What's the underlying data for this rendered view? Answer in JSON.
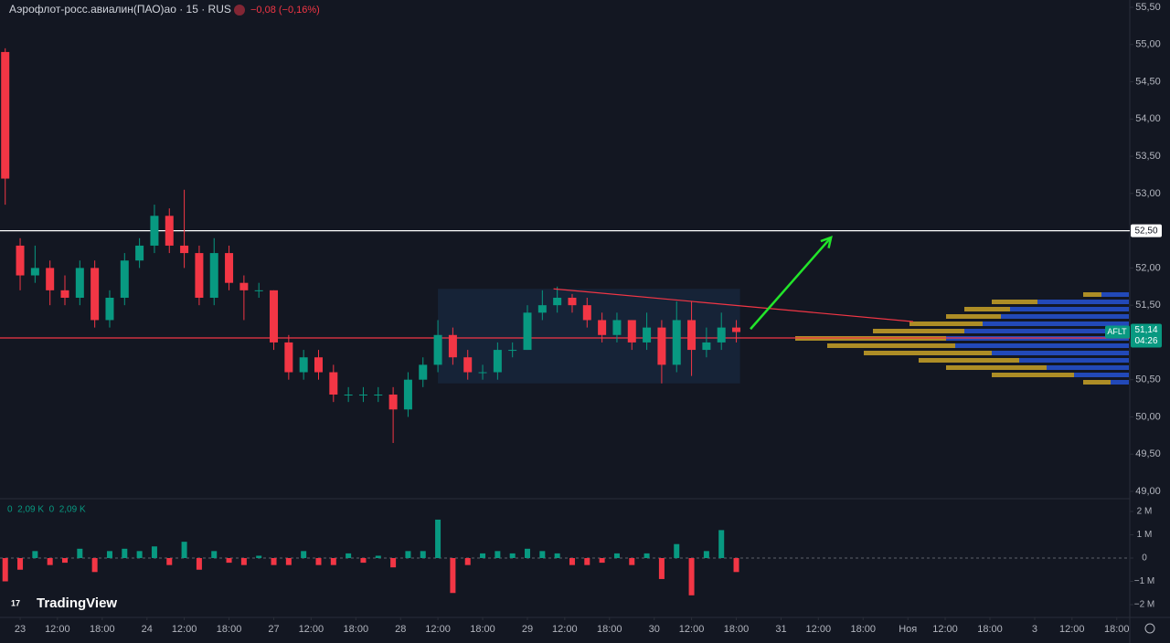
{
  "chart_data": {
    "type": "candlestick",
    "title": "Аэрофлот-росс.авиалин(ПАО)ао · 15 · RUS",
    "change": "−0,08 (−0,16%)",
    "volume_legend": "0  2,09 K  0  2,09 K",
    "logo": "TradingView",
    "up_color": "#089981",
    "down_color": "#f23645",
    "candles": {
      "x": [
        -2,
        0,
        2,
        4,
        6,
        8,
        10,
        12,
        14,
        16,
        18,
        20,
        22,
        24,
        26,
        28,
        30,
        32,
        34,
        36,
        38,
        40,
        42,
        44,
        46,
        48,
        50,
        52,
        54,
        56,
        58,
        60,
        62,
        64,
        66,
        68,
        70,
        72,
        74,
        76,
        78,
        80,
        82,
        84,
        86,
        88,
        90,
        92,
        94,
        96
      ],
      "open": [
        54.9,
        52.3,
        51.9,
        52.0,
        51.7,
        51.6,
        52.0,
        51.3,
        51.6,
        52.1,
        52.3,
        52.7,
        52.3,
        52.2,
        51.6,
        52.2,
        51.8,
        51.7,
        51.7,
        51.0,
        50.6,
        50.8,
        50.6,
        50.3,
        50.3,
        50.3,
        50.3,
        50.1,
        50.5,
        50.7,
        51.1,
        50.8,
        50.6,
        50.6,
        50.9,
        50.9,
        51.4,
        51.5,
        51.6,
        51.5,
        51.3,
        51.1,
        51.3,
        51.0,
        51.2,
        50.7,
        51.3,
        50.9,
        51.0,
        51.2
      ],
      "high": [
        54.95,
        52.4,
        52.3,
        52.1,
        51.9,
        52.1,
        52.1,
        51.7,
        52.2,
        52.4,
        52.85,
        52.8,
        53.05,
        52.3,
        52.4,
        52.3,
        51.9,
        51.8,
        51.7,
        51.1,
        50.9,
        50.9,
        50.7,
        50.4,
        50.4,
        50.4,
        50.4,
        50.6,
        50.8,
        51.3,
        51.2,
        50.9,
        50.7,
        51.0,
        51.0,
        51.5,
        51.7,
        51.75,
        51.65,
        51.6,
        51.4,
        51.4,
        51.3,
        51.4,
        51.3,
        51.55,
        51.55,
        51.2,
        51.4,
        51.3
      ],
      "low": [
        52.85,
        51.7,
        51.8,
        51.5,
        51.5,
        51.5,
        51.2,
        51.2,
        51.5,
        52.0,
        52.2,
        52.2,
        52.0,
        51.5,
        51.5,
        51.7,
        51.3,
        51.6,
        50.9,
        50.5,
        50.5,
        50.5,
        50.2,
        50.2,
        50.2,
        50.2,
        49.65,
        50.0,
        50.4,
        50.6,
        50.7,
        50.5,
        50.5,
        50.5,
        50.8,
        50.9,
        51.3,
        51.4,
        51.4,
        51.2,
        51.0,
        51.0,
        50.9,
        50.9,
        50.45,
        50.6,
        50.55,
        50.8,
        50.9,
        51.0
      ],
      "close": [
        53.2,
        51.9,
        52.0,
        51.7,
        51.6,
        52.0,
        51.3,
        51.6,
        52.1,
        52.3,
        52.7,
        52.3,
        52.2,
        51.6,
        52.2,
        51.8,
        51.7,
        51.7,
        51.0,
        50.6,
        50.8,
        50.6,
        50.3,
        50.3,
        50.3,
        50.3,
        50.1,
        50.5,
        50.7,
        51.1,
        50.8,
        50.6,
        50.6,
        50.9,
        50.9,
        51.4,
        51.5,
        51.6,
        51.5,
        51.3,
        51.1,
        51.3,
        51.0,
        51.2,
        50.7,
        51.3,
        50.9,
        51.0,
        51.2,
        51.14
      ]
    },
    "volume": [
      -1.0,
      -0.5,
      0.3,
      -0.3,
      -0.2,
      0.4,
      -0.6,
      0.3,
      0.4,
      0.3,
      0.5,
      -0.3,
      0.7,
      -0.5,
      0.3,
      -0.2,
      -0.3,
      0.1,
      -0.3,
      -0.3,
      0.3,
      -0.3,
      -0.3,
      0.2,
      -0.2,
      0.1,
      -0.4,
      0.3,
      0.3,
      1.65,
      -1.5,
      -0.3,
      0.2,
      0.3,
      0.2,
      0.4,
      0.3,
      0.2,
      -0.3,
      -0.3,
      -0.2,
      0.2,
      -0.3,
      0.2,
      -0.9,
      0.6,
      -1.6,
      0.3,
      1.2,
      -0.6
    ],
    "xlim": [
      -2.7,
      148.5
    ],
    "xticks": [
      {
        "value": 0,
        "label": "23"
      },
      {
        "value": 5,
        "label": "12:00"
      },
      {
        "value": 11,
        "label": "18:00"
      },
      {
        "value": 17,
        "label": "24"
      },
      {
        "value": 22,
        "label": "12:00"
      },
      {
        "value": 28,
        "label": "18:00"
      },
      {
        "value": 34,
        "label": "27"
      },
      {
        "value": 39,
        "label": "12:00"
      },
      {
        "value": 45,
        "label": "18:00"
      },
      {
        "value": 51,
        "label": "28"
      },
      {
        "value": 56,
        "label": "12:00"
      },
      {
        "value": 62,
        "label": "18:00"
      },
      {
        "value": 68,
        "label": "29"
      },
      {
        "value": 73,
        "label": "12:00"
      },
      {
        "value": 79,
        "label": "18:00"
      },
      {
        "value": 85,
        "label": "30"
      },
      {
        "value": 90,
        "label": "12:00"
      },
      {
        "value": 96,
        "label": "18:00"
      },
      {
        "value": 102,
        "label": "31"
      },
      {
        "value": 107,
        "label": "12:00"
      },
      {
        "value": 113,
        "label": "18:00"
      },
      {
        "value": 119,
        "label": "Ноя"
      },
      {
        "value": 124,
        "label": "12:00"
      },
      {
        "value": 130,
        "label": "18:00"
      },
      {
        "value": 136,
        "label": "3"
      },
      {
        "value": 141,
        "label": "12:00"
      },
      {
        "value": 147,
        "label": "18:00"
      }
    ],
    "ylim": [
      49.0,
      55.5
    ],
    "yticks": [
      {
        "value": 55.5,
        "label": "55,50"
      },
      {
        "value": 55.0,
        "label": "55,00"
      },
      {
        "value": 54.5,
        "label": "54,50"
      },
      {
        "value": 54.0,
        "label": "54,00"
      },
      {
        "value": 53.5,
        "label": "53,50"
      },
      {
        "value": 53.0,
        "label": "53,00"
      },
      {
        "value": 52.5,
        "label": "52,50"
      },
      {
        "value": 52.0,
        "label": "52,00"
      },
      {
        "value": 51.5,
        "label": "51,50"
      },
      {
        "value": 51.0,
        "label": "51,00"
      },
      {
        "value": 50.5,
        "label": "50,50"
      },
      {
        "value": 50.0,
        "label": "50,00"
      },
      {
        "value": 49.5,
        "label": "49,50"
      },
      {
        "value": 49.0,
        "label": "49,00"
      }
    ],
    "vlim": [
      -2.5,
      2.5
    ],
    "vticks": [
      {
        "value": 2,
        "label": "2 M"
      },
      {
        "value": 1,
        "label": "1 M"
      },
      0,
      {
        "value": -1,
        "label": "−1 M"
      },
      {
        "value": -2,
        "label": "−2 M"
      }
    ],
    "levels": [
      {
        "price": 52.5,
        "label": "52,50",
        "color": "#ffffff"
      },
      {
        "price": 51.06,
        "color": "#f23645"
      }
    ],
    "last": {
      "symbol": "AFLT",
      "price": 51.14,
      "label": "51,14",
      "countdown": "04:26",
      "color": "#089981"
    },
    "box": {
      "x": [
        56,
        96.5
      ],
      "y": [
        50.45,
        51.72
      ]
    },
    "trend": {
      "x": [
        71.5,
        119.7
      ],
      "y": [
        51.72,
        51.28
      ],
      "color": "#f23645"
    },
    "arrow": {
      "x": [
        97.9,
        108.7
      ],
      "y": [
        51.18,
        52.41
      ],
      "color": "#22e52a"
    }
  }
}
